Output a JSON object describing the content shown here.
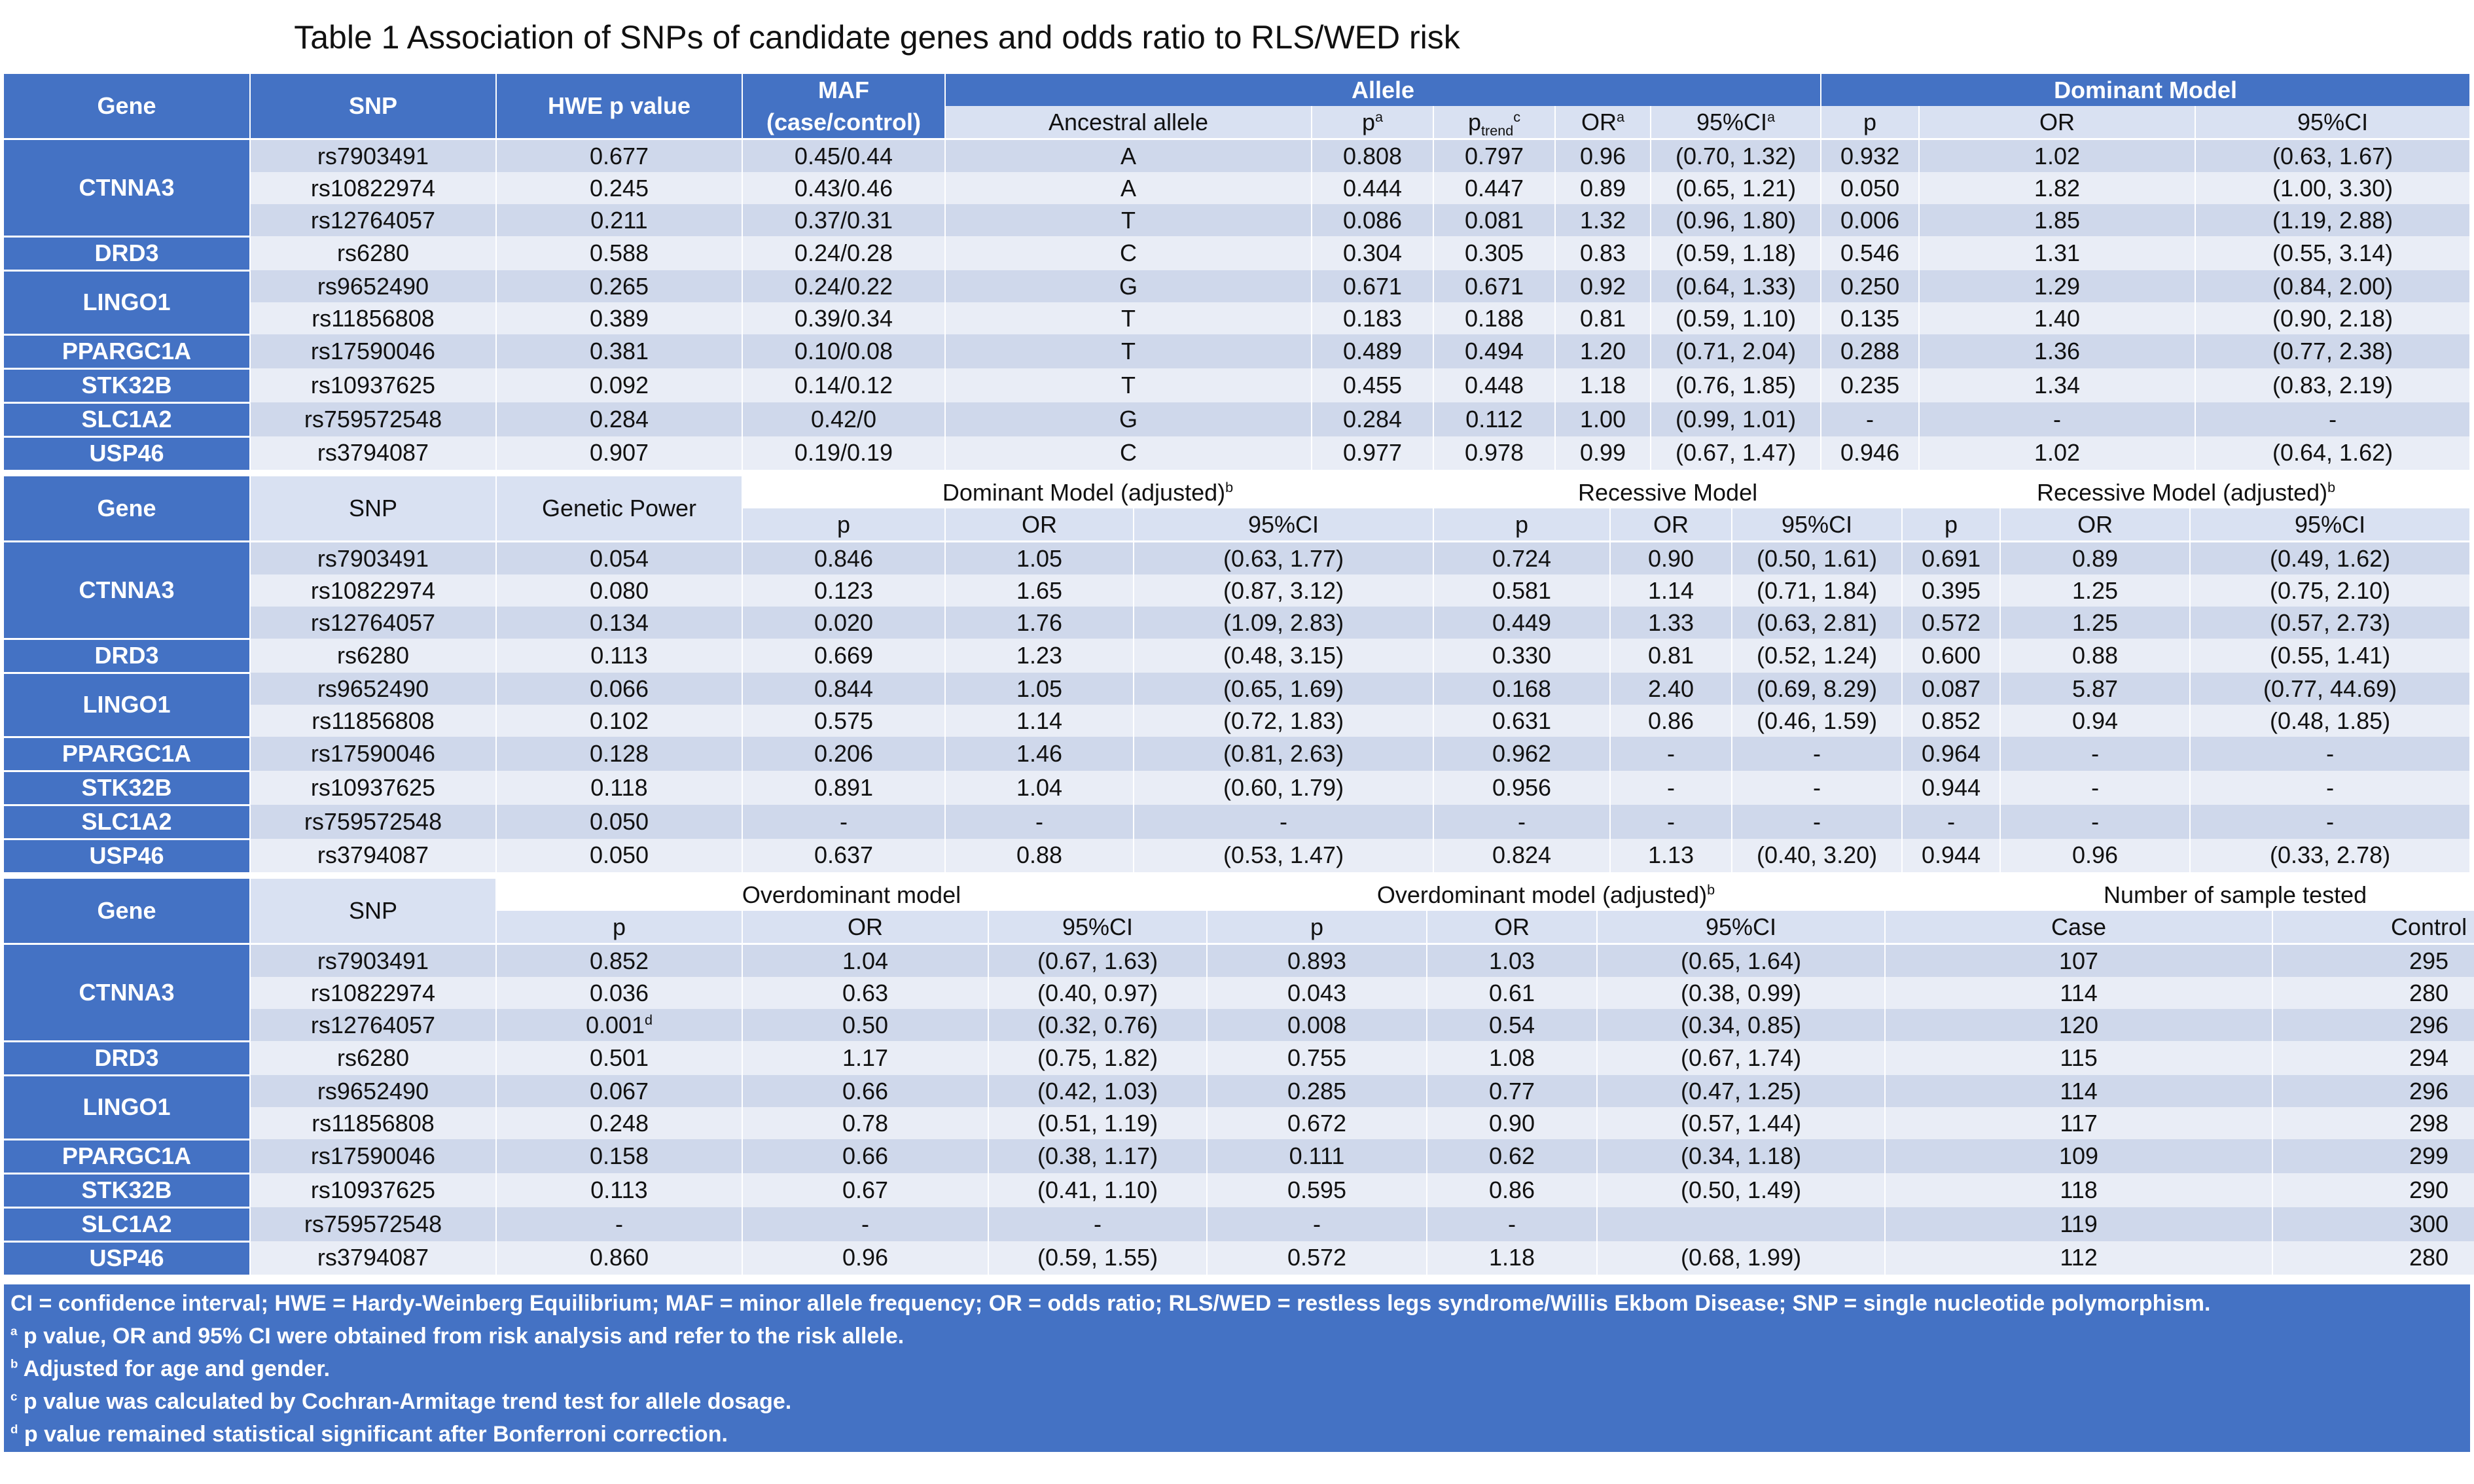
{
  "title": "Table 1 Association of SNPs of candidate genes and odds ratio to RLS/WED risk",
  "sec1": {
    "h": {
      "gene": "Gene",
      "snp": "SNP",
      "hwe": "HWE p value",
      "maf1": "MAF",
      "maf2": "(case/control)",
      "allele": "Allele",
      "dominant": "Dominant Model",
      "ancestral": "Ancestral allele",
      "p": "p",
      "p_sup": "a",
      "ptrend": "p",
      "ptrend_sub": "trend",
      "ptrend_sup": "c",
      "or": "OR",
      "or_sup": "a",
      "ci": "95%CI",
      "ci_sup": "a",
      "dp": "p",
      "dor": "OR",
      "dci": "95%CI"
    },
    "rows": [
      {
        "gene": "CTNNA3",
        "snp": "rs7903491",
        "hwe": "0.677",
        "maf": "0.45/0.44",
        "anc": "A",
        "p": "0.808",
        "pt": "0.797",
        "or": "0.96",
        "ci": "(0.70, 1.32)",
        "dp": "0.932",
        "dor": "1.02",
        "dci": "(0.63, 1.67)"
      },
      {
        "gene": "",
        "snp": "rs10822974",
        "hwe": "0.245",
        "maf": "0.43/0.46",
        "anc": "A",
        "p": "0.444",
        "pt": "0.447",
        "or": "0.89",
        "ci": "(0.65, 1.21)",
        "dp": "0.050",
        "dor": "1.82",
        "dci": "(1.00, 3.30)"
      },
      {
        "gene": "",
        "snp": "rs12764057",
        "hwe": "0.211",
        "maf": "0.37/0.31",
        "anc": "T",
        "p": "0.086",
        "pt": "0.081",
        "or": "1.32",
        "ci": "(0.96, 1.80)",
        "dp": "0.006",
        "dor": "1.85",
        "dci": "(1.19, 2.88)"
      },
      {
        "gene": "DRD3",
        "snp": "rs6280",
        "hwe": "0.588",
        "maf": "0.24/0.28",
        "anc": "C",
        "p": "0.304",
        "pt": "0.305",
        "or": "0.83",
        "ci": "(0.59, 1.18)",
        "dp": "0.546",
        "dor": "1.31",
        "dci": "(0.55, 3.14)"
      },
      {
        "gene": "LINGO1",
        "snp": "rs9652490",
        "hwe": "0.265",
        "maf": "0.24/0.22",
        "anc": "G",
        "p": "0.671",
        "pt": "0.671",
        "or": "0.92",
        "ci": "(0.64, 1.33)",
        "dp": "0.250",
        "dor": "1.29",
        "dci": "(0.84, 2.00)"
      },
      {
        "gene": "",
        "snp": "rs11856808",
        "hwe": "0.389",
        "maf": "0.39/0.34",
        "anc": "T",
        "p": "0.183",
        "pt": "0.188",
        "or": "0.81",
        "ci": "(0.59, 1.10)",
        "dp": "0.135",
        "dor": "1.40",
        "dci": "(0.90, 2.18)"
      },
      {
        "gene": "PPARGC1A",
        "snp": "rs17590046",
        "hwe": "0.381",
        "maf": "0.10/0.08",
        "anc": "T",
        "p": "0.489",
        "pt": "0.494",
        "or": "1.20",
        "ci": "(0.71, 2.04)",
        "dp": "0.288",
        "dor": "1.36",
        "dci": "(0.77, 2.38)"
      },
      {
        "gene": "STK32B",
        "snp": "rs10937625",
        "hwe": "0.092",
        "maf": "0.14/0.12",
        "anc": "T",
        "p": "0.455",
        "pt": "0.448",
        "or": "1.18",
        "ci": "(0.76, 1.85)",
        "dp": "0.235",
        "dor": "1.34",
        "dci": "(0.83, 2.19)"
      },
      {
        "gene": "SLC1A2",
        "snp": "rs759572548",
        "hwe": "0.284",
        "maf": "0.42/0",
        "anc": "G",
        "p": "0.284",
        "pt": "0.112",
        "or": "1.00",
        "ci": "(0.99, 1.01)",
        "dp": "-",
        "dor": "-",
        "dci": "-"
      },
      {
        "gene": "USP46",
        "snp": "rs3794087",
        "hwe": "0.907",
        "maf": "0.19/0.19",
        "anc": "C",
        "p": "0.977",
        "pt": "0.978",
        "or": "0.99",
        "ci": "(0.67, 1.47)",
        "dp": "0.946",
        "dor": "1.02",
        "dci": "(0.64, 1.62)"
      }
    ]
  },
  "sec2": {
    "h": {
      "gene": "Gene",
      "snp": "SNP",
      "power": "Genetic Power",
      "dadj": "Dominant Model (adjusted)",
      "dadj_sup": "b",
      "rec": "Recessive Model",
      "radj": "Recessive Model (adjusted)",
      "radj_sup": "b",
      "p": "p",
      "or": "OR",
      "ci": "95%CI"
    },
    "rows": [
      {
        "gene": "CTNNA3",
        "snp": "rs7903491",
        "gp": "0.054",
        "dp": "0.846",
        "dor": "1.05",
        "dci": "(0.63, 1.77)",
        "rp": "0.724",
        "ror": "0.90",
        "rci": "(0.50, 1.61)",
        "ap": "0.691",
        "aor": "0.89",
        "aci": "(0.49, 1.62)"
      },
      {
        "gene": "",
        "snp": "rs10822974",
        "gp": "0.080",
        "dp": "0.123",
        "dor": "1.65",
        "dci": "(0.87, 3.12)",
        "rp": "0.581",
        "ror": "1.14",
        "rci": "(0.71, 1.84)",
        "ap": "0.395",
        "aor": "1.25",
        "aci": "(0.75, 2.10)"
      },
      {
        "gene": "",
        "snp": "rs12764057",
        "gp": "0.134",
        "dp": "0.020",
        "dor": "1.76",
        "dci": "(1.09, 2.83)",
        "rp": "0.449",
        "ror": "1.33",
        "rci": "(0.63, 2.81)",
        "ap": "0.572",
        "aor": "1.25",
        "aci": "(0.57, 2.73)"
      },
      {
        "gene": "DRD3",
        "snp": "rs6280",
        "gp": "0.113",
        "dp": "0.669",
        "dor": "1.23",
        "dci": "(0.48, 3.15)",
        "rp": "0.330",
        "ror": "0.81",
        "rci": "(0.52, 1.24)",
        "ap": "0.600",
        "aor": "0.88",
        "aci": "(0.55, 1.41)"
      },
      {
        "gene": "LINGO1",
        "snp": "rs9652490",
        "gp": "0.066",
        "dp": "0.844",
        "dor": "1.05",
        "dci": "(0.65, 1.69)",
        "rp": "0.168",
        "ror": "2.40",
        "rci": "(0.69, 8.29)",
        "ap": "0.087",
        "aor": "5.87",
        "aci": "(0.77, 44.69)"
      },
      {
        "gene": "",
        "snp": "rs11856808",
        "gp": "0.102",
        "dp": "0.575",
        "dor": "1.14",
        "dci": "(0.72, 1.83)",
        "rp": "0.631",
        "ror": "0.86",
        "rci": "(0.46, 1.59)",
        "ap": "0.852",
        "aor": "0.94",
        "aci": "(0.48, 1.85)"
      },
      {
        "gene": "PPARGC1A",
        "snp": "rs17590046",
        "gp": "0.128",
        "dp": "0.206",
        "dor": "1.46",
        "dci": "(0.81, 2.63)",
        "rp": "0.962",
        "ror": "-",
        "rci": "-",
        "ap": "0.964",
        "aor": "-",
        "aci": "-"
      },
      {
        "gene": "STK32B",
        "snp": "rs10937625",
        "gp": "0.118",
        "dp": "0.891",
        "dor": "1.04",
        "dci": "(0.60, 1.79)",
        "rp": "0.956",
        "ror": "-",
        "rci": "-",
        "ap": "0.944",
        "aor": "-",
        "aci": "-"
      },
      {
        "gene": "SLC1A2",
        "snp": "rs759572548",
        "gp": "0.050",
        "dp": "-",
        "dor": "-",
        "dci": "-",
        "rp": "-",
        "ror": "-",
        "rci": "-",
        "ap": "-",
        "aor": "-",
        "aci": "-"
      },
      {
        "gene": "USP46",
        "snp": "rs3794087",
        "gp": "0.050",
        "dp": "0.637",
        "dor": "0.88",
        "dci": "(0.53, 1.47)",
        "rp": "0.824",
        "ror": "1.13",
        "rci": "(0.40, 3.20)",
        "ap": "0.944",
        "aor": "0.96",
        "aci": "(0.33, 2.78)"
      }
    ]
  },
  "sec3": {
    "h": {
      "gene": "Gene",
      "snp": "SNP",
      "od": "Overdominant model",
      "oda": "Overdominant model (adjusted)",
      "oda_sup": "b",
      "n": "Number of sample tested",
      "p": "p",
      "or": "OR",
      "ci": "95%CI",
      "case": "Case",
      "control": "Control"
    },
    "rows": [
      {
        "gene": "CTNNA3",
        "snp": "rs7903491",
        "p": "0.852",
        "p_sup": "",
        "or": "1.04",
        "ci": "(0.67, 1.63)",
        "ap": "0.893",
        "aor": "1.03",
        "aci": "(0.65, 1.64)",
        "case": "107",
        "ctrl": "295"
      },
      {
        "gene": "",
        "snp": "rs10822974",
        "p": "0.036",
        "p_sup": "",
        "or": "0.63",
        "ci": "(0.40, 0.97)",
        "ap": "0.043",
        "aor": "0.61",
        "aci": "(0.38, 0.99)",
        "case": "114",
        "ctrl": "280"
      },
      {
        "gene": "",
        "snp": "rs12764057",
        "p": "0.001",
        "p_sup": "d",
        "or": "0.50",
        "ci": "(0.32, 0.76)",
        "ap": "0.008",
        "aor": "0.54",
        "aci": "(0.34, 0.85)",
        "case": "120",
        "ctrl": "296"
      },
      {
        "gene": "DRD3",
        "snp": "rs6280",
        "p": "0.501",
        "p_sup": "",
        "or": "1.17",
        "ci": "(0.75, 1.82)",
        "ap": "0.755",
        "aor": "1.08",
        "aci": "(0.67, 1.74)",
        "case": "115",
        "ctrl": "294"
      },
      {
        "gene": "LINGO1",
        "snp": "rs9652490",
        "p": "0.067",
        "p_sup": "",
        "or": "0.66",
        "ci": "(0.42, 1.03)",
        "ap": "0.285",
        "aor": "0.77",
        "aci": "(0.47, 1.25)",
        "case": "114",
        "ctrl": "296"
      },
      {
        "gene": "",
        "snp": "rs11856808",
        "p": "0.248",
        "p_sup": "",
        "or": "0.78",
        "ci": "(0.51, 1.19)",
        "ap": "0.672",
        "aor": "0.90",
        "aci": "(0.57, 1.44)",
        "case": "117",
        "ctrl": "298"
      },
      {
        "gene": "PPARGC1A",
        "snp": "rs17590046",
        "p": "0.158",
        "p_sup": "",
        "or": "0.66",
        "ci": "(0.38, 1.17)",
        "ap": "0.111",
        "aor": "0.62",
        "aci": "(0.34, 1.18)",
        "case": "109",
        "ctrl": "299"
      },
      {
        "gene": "STK32B",
        "snp": "rs10937625",
        "p": "0.113",
        "p_sup": "",
        "or": "0.67",
        "ci": "(0.41, 1.10)",
        "ap": "0.595",
        "aor": "0.86",
        "aci": "(0.50, 1.49)",
        "case": "118",
        "ctrl": "290"
      },
      {
        "gene": "SLC1A2",
        "snp": "rs759572548",
        "p": "-",
        "p_sup": "",
        "or": "-",
        "ci": "-",
        "ap": "-",
        "aor": "-",
        "aci": "",
        "case": "119",
        "ctrl": "300"
      },
      {
        "gene": "USP46",
        "snp": "rs3794087",
        "p": "0.860",
        "p_sup": "",
        "or": "0.96",
        "ci": "(0.59, 1.55)",
        "ap": "0.572",
        "aor": "1.18",
        "aci": "(0.68, 1.99)",
        "case": "112",
        "ctrl": "280"
      }
    ]
  },
  "notes": [
    {
      "sup": "",
      "text": "CI = confidence interval; HWE = Hardy-Weinberg Equilibrium; MAF = minor allele frequency; OR = odds ratio; RLS/WED = restless legs syndrome/Willis Ekbom Disease; SNP = single nucleotide polymorphism."
    },
    {
      "sup": "a",
      "text": " p value, OR and 95% CI were obtained from risk analysis and refer to the risk allele."
    },
    {
      "sup": "b",
      "text": " Adjusted for age and gender."
    },
    {
      "sup": "c",
      "text": " p value was calculated by Cochran-Armitage trend test for allele dosage."
    },
    {
      "sup": "d",
      "text": " p value remained statistical significant after Bonferroni correction."
    }
  ],
  "colors": {
    "header_blue": "#4472c4",
    "row_dark": "#cfd8eb",
    "row_light": "#e9edf6",
    "subheader": "#d9e1f2"
  }
}
